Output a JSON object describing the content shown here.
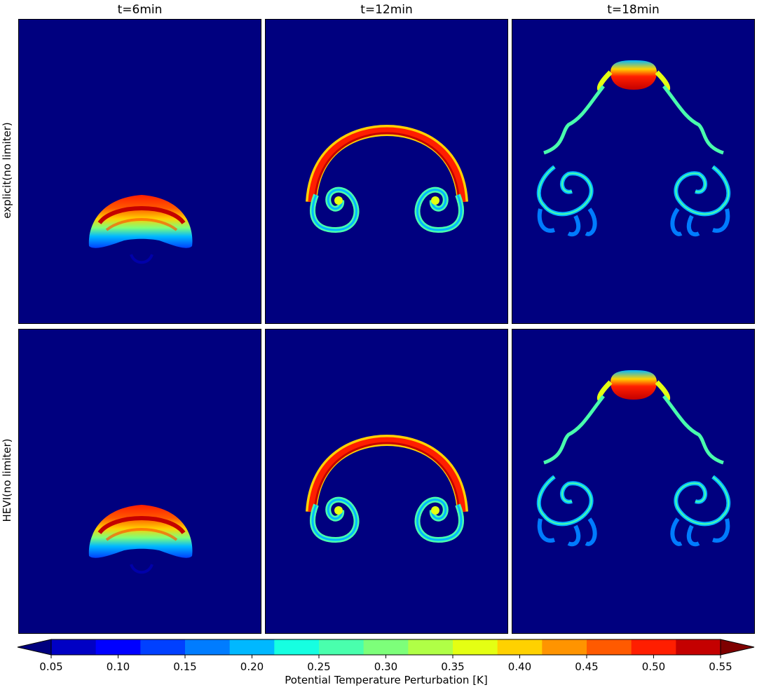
{
  "chart_data": {
    "type": "heatmap",
    "columns": [
      "t=6min",
      "t=12min",
      "t=18min"
    ],
    "rows": [
      "explicit(no limiter)",
      "HEVI(no limiter)"
    ],
    "colorbar": {
      "label": "Potential Temperature Perturbation [K]",
      "min": 0.05,
      "max": 0.55,
      "step": 0.025,
      "extend": "both",
      "colormap": "jet",
      "ticks": [
        "0.05",
        "0.10",
        "0.15",
        "0.20",
        "0.25",
        "0.30",
        "0.35",
        "0.40",
        "0.45",
        "0.50",
        "0.55"
      ],
      "levels": [
        "#00007f",
        "#0000c4",
        "#0000ff",
        "#0040ff",
        "#007cff",
        "#00b8ff",
        "#16ffe1",
        "#49ffad",
        "#7dff7a",
        "#b0ff46",
        "#e4ff13",
        "#ffd100",
        "#ff9400",
        "#ff5a00",
        "#ff1e00",
        "#c40000",
        "#7f0000"
      ]
    },
    "background_color": "#00007f"
  }
}
